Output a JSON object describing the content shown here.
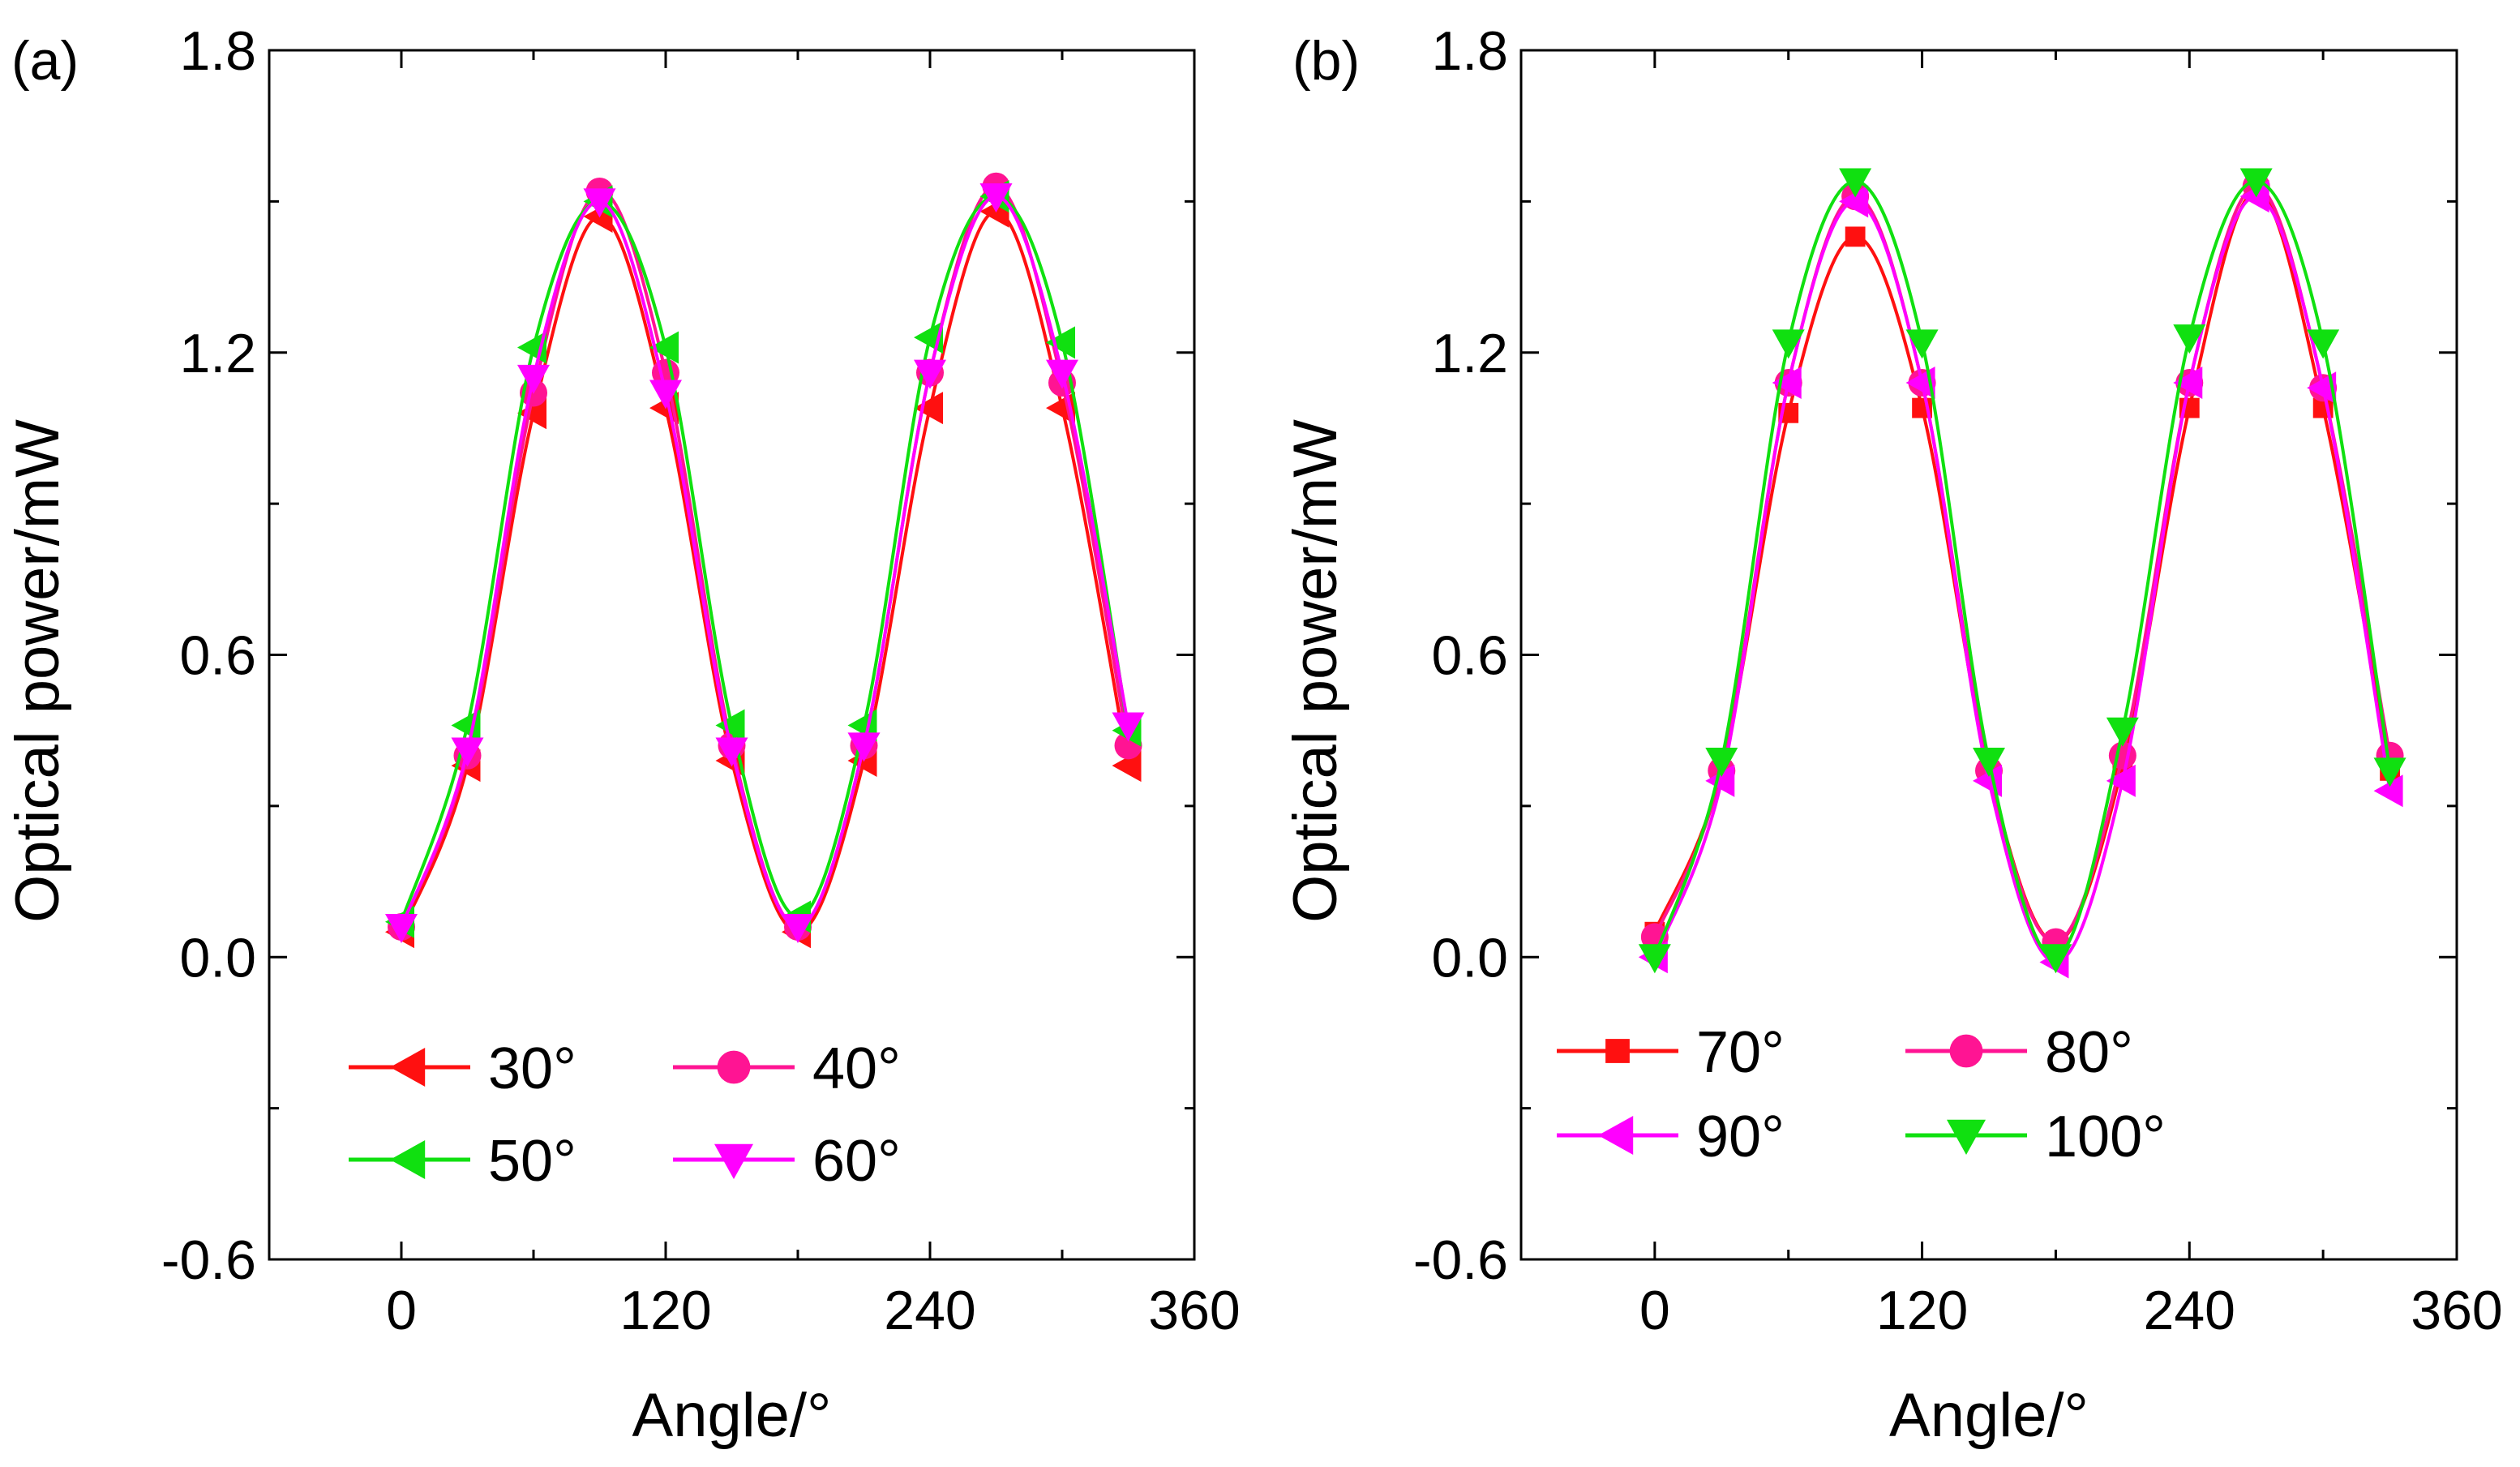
{
  "figure": {
    "panel_a_label": "(a)",
    "panel_b_label": "(b)"
  },
  "chart_data": [
    {
      "type": "line",
      "panel": "(a)",
      "xlabel": "Angle/°",
      "ylabel": "Optical power/mW",
      "xlim": [
        -60,
        360
      ],
      "ylim": [
        -0.6,
        1.8
      ],
      "xticks": [
        0,
        120,
        240,
        360
      ],
      "xtick_labels": [
        "0",
        "120",
        "240",
        "360"
      ],
      "yticks": [
        -0.6,
        0.0,
        0.6,
        1.2,
        1.8
      ],
      "ytick_labels": [
        "-0.6",
        "0.0",
        "0.6",
        "1.2",
        "1.8"
      ],
      "legend_placement": "bottom-center",
      "x": [
        0,
        30,
        60,
        90,
        120,
        150,
        180,
        210,
        240,
        270,
        300,
        330
      ],
      "series": [
        {
          "name": "30°",
          "color": "#ff1010",
          "marker": "triangle-left",
          "values": [
            0.05,
            0.38,
            1.08,
            1.47,
            1.09,
            0.39,
            0.05,
            0.39,
            1.09,
            1.48,
            1.09,
            0.38
          ]
        },
        {
          "name": "40°",
          "color": "#ff1493",
          "marker": "circle",
          "values": [
            0.06,
            0.4,
            1.12,
            1.52,
            1.16,
            0.42,
            0.06,
            0.42,
            1.16,
            1.53,
            1.14,
            0.42
          ]
        },
        {
          "name": "50°",
          "color": "#10e010",
          "marker": "triangle-left",
          "values": [
            0.07,
            0.46,
            1.21,
            1.5,
            1.21,
            0.46,
            0.08,
            0.46,
            1.23,
            1.51,
            1.22,
            0.45
          ]
        },
        {
          "name": "60°",
          "color": "#ff00ff",
          "marker": "triangle-down",
          "values": [
            0.06,
            0.41,
            1.15,
            1.5,
            1.12,
            0.41,
            0.06,
            0.42,
            1.16,
            1.51,
            1.16,
            0.46
          ]
        }
      ]
    },
    {
      "type": "line",
      "panel": "(b)",
      "xlabel": "Angle/°",
      "ylabel": "Optical power/mW",
      "xlim": [
        -60,
        360
      ],
      "ylim": [
        -0.6,
        1.8
      ],
      "xticks": [
        0,
        120,
        240,
        360
      ],
      "xtick_labels": [
        "0",
        "120",
        "240",
        "360"
      ],
      "yticks": [
        -0.6,
        0.0,
        0.6,
        1.2,
        1.8
      ],
      "ytick_labels": [
        "-0.6",
        "0.0",
        "0.6",
        "1.2",
        "1.8"
      ],
      "legend_placement": "bottom-center",
      "x": [
        0,
        30,
        60,
        90,
        120,
        150,
        180,
        210,
        240,
        270,
        300,
        330
      ],
      "series": [
        {
          "name": "70°",
          "color": "#ff1010",
          "marker": "square",
          "values": [
            0.05,
            0.37,
            1.08,
            1.43,
            1.09,
            0.37,
            0.03,
            0.38,
            1.09,
            1.52,
            1.09,
            0.37
          ]
        },
        {
          "name": "80°",
          "color": "#ff1493",
          "marker": "circle",
          "values": [
            0.04,
            0.37,
            1.14,
            1.51,
            1.14,
            0.37,
            0.03,
            0.4,
            1.14,
            1.53,
            1.13,
            0.4
          ]
        },
        {
          "name": "90°",
          "color": "#ff00ff",
          "marker": "triangle-left",
          "values": [
            0.0,
            0.35,
            1.14,
            1.5,
            1.14,
            0.35,
            -0.01,
            0.35,
            1.14,
            1.51,
            1.13,
            0.33
          ]
        },
        {
          "name": "100°",
          "color": "#10e010",
          "marker": "triangle-down",
          "values": [
            0.0,
            0.39,
            1.22,
            1.54,
            1.22,
            0.39,
            0.0,
            0.45,
            1.23,
            1.54,
            1.22,
            0.37
          ]
        }
      ]
    }
  ]
}
